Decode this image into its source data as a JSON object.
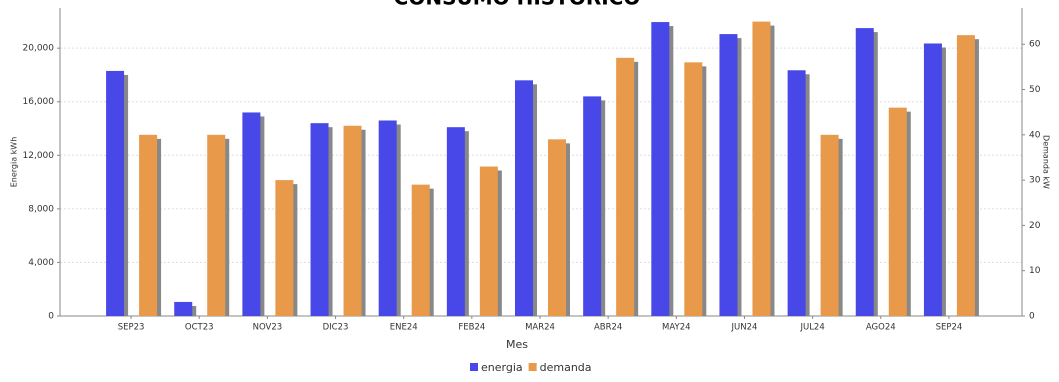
{
  "chart_data": {
    "type": "bar",
    "title": "CONSUMO HISTÓRICO",
    "x_label": "Mes",
    "y_label": "Energia kWh",
    "y2_label": "Demanda kW",
    "categories": [
      "SEP23",
      "OCT23",
      "NOV23",
      "DIC23",
      "ENE24",
      "FEB24",
      "MAR24",
      "ABR24",
      "MAY24",
      "JUN24",
      "JUL24",
      "AGO24",
      "SEP24"
    ],
    "series": [
      {
        "name": "energia",
        "color": "#4848e8",
        "values": [
          18300,
          1050,
          15200,
          14400,
          14600,
          14100,
          17600,
          16400,
          21950,
          21050,
          18350,
          21500,
          20350
        ]
      },
      {
        "name": "demanda",
        "color": "#e8994a",
        "axis": "y2",
        "values": [
          40,
          40,
          30,
          42,
          29,
          33,
          39,
          57,
          56,
          65,
          40,
          46,
          62
        ]
      }
    ],
    "ylim": [
      0,
      23000
    ],
    "yticks": [
      0,
      {
        "value": 4000,
        "label": "4,000"
      },
      {
        "value": 8000,
        "label": "8,000"
      },
      {
        "value": 12000,
        "label": "12,000"
      },
      {
        "value": 16000,
        "label": "16,000"
      },
      {
        "value": 20000,
        "label": "20,000"
      }
    ],
    "y2lim": [
      0,
      68
    ],
    "y2ticks": [
      0,
      10,
      20,
      30,
      40,
      50,
      60
    ],
    "grid": true,
    "legend": "bottom"
  }
}
